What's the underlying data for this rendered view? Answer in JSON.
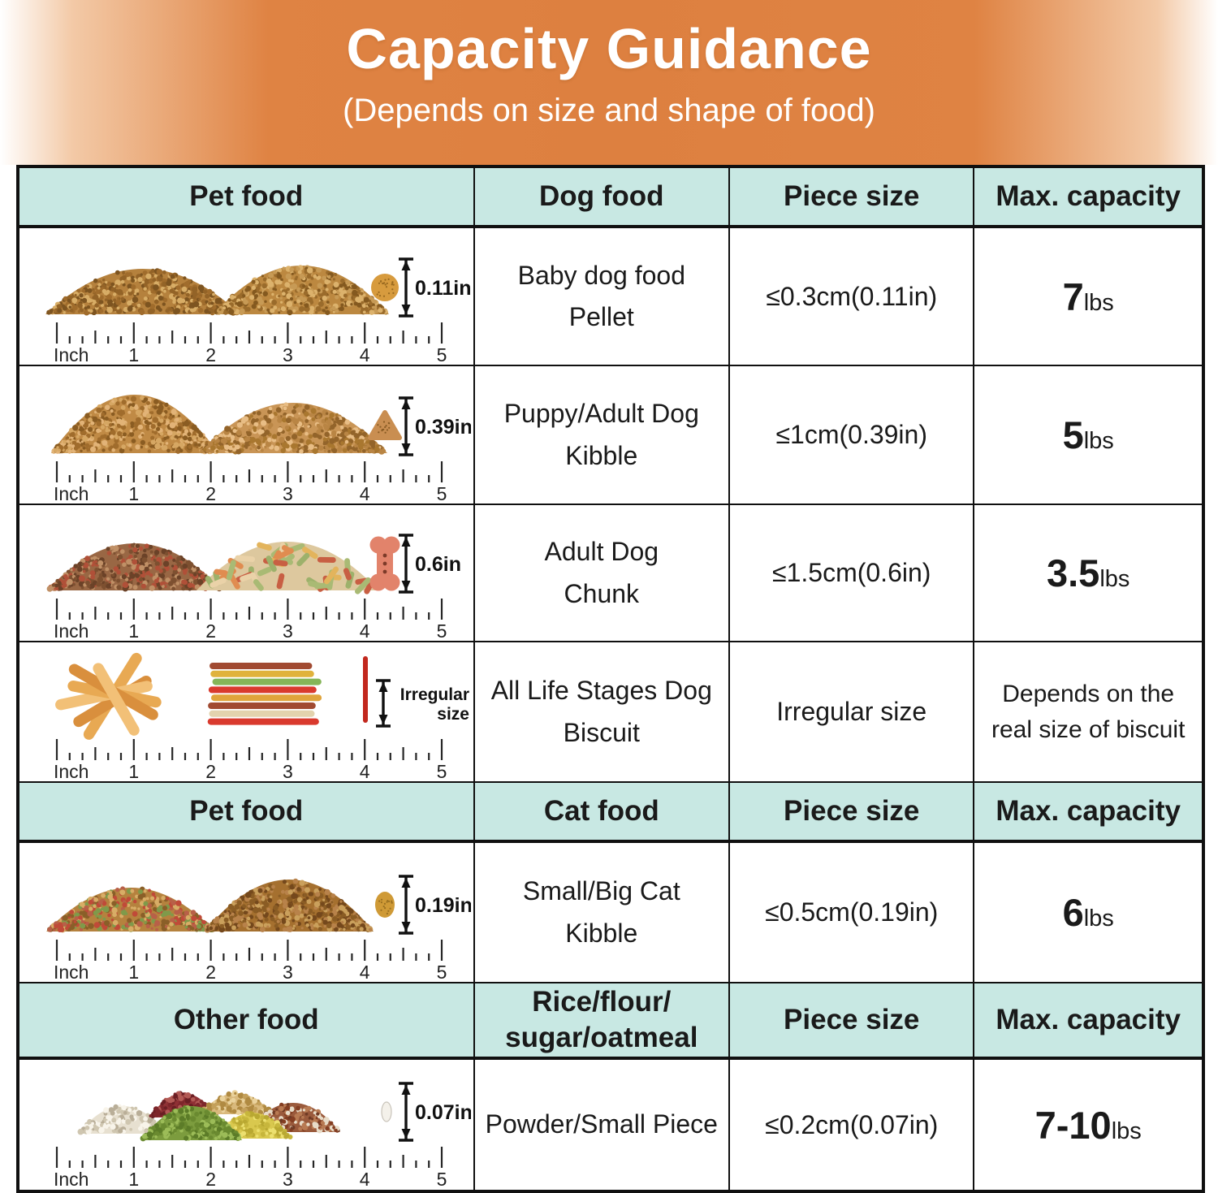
{
  "banner": {
    "title": "Capacity Guidance",
    "subtitle": "(Depends on size and shape of food)"
  },
  "colors": {
    "banner_orange": "#dd8040",
    "header_cell_bg": "#c8e8e3",
    "table_border": "#101010",
    "text": "#1a1a1a",
    "ruler_tick": "#262626"
  },
  "ruler": {
    "unit": "Inch",
    "numbers": [
      "1",
      "2",
      "3",
      "4",
      "5"
    ]
  },
  "sections": [
    {
      "header": [
        "Pet food",
        "Dog food",
        "Piece size",
        "Max. capacity"
      ],
      "rows": [
        {
          "food": "Baby dog food\nPellet",
          "piece_size": "≤0.3cm(0.11in)",
          "capacity": {
            "value": "7",
            "unit": "lbs"
          },
          "art": {
            "type": "pellets",
            "measure": "0.11in",
            "piece_color": "#d79b3e",
            "piles": [
              {
                "base": "#b5813d",
                "dots": [
                  "#7d5420",
                  "#d8ad66",
                  "#936327",
                  "#a06c2c"
                ]
              },
              {
                "base": "#bc8840",
                "dots": [
                  "#84591f",
                  "#dcb26c",
                  "#9a6b2b",
                  "#c79a55"
                ]
              }
            ]
          }
        },
        {
          "food": "Puppy/Adult Dog\nKibble",
          "piece_size": "≤1cm(0.39in)",
          "capacity": {
            "value": "5",
            "unit": "lbs"
          },
          "art": {
            "type": "kibble",
            "measure": "0.39in",
            "piece_color": "#c98e51",
            "piles": [
              {
                "base": "#c08a45",
                "dots": [
                  "#8a5c22",
                  "#e2b377",
                  "#a06c2c",
                  "#d6a763"
                ]
              },
              {
                "base": "#c99556",
                "dots": [
                  "#93642a",
                  "#e8bd85",
                  "#a9772f",
                  "#b98544"
                ]
              }
            ]
          }
        },
        {
          "food": "Adult Dog\nChunk",
          "piece_size": "≤1.5cm(0.6in)",
          "capacity": {
            "value": "3.5",
            "unit": "lbs"
          },
          "art": {
            "type": "chunks",
            "measure": "0.6in",
            "piece_color": "#e2836b",
            "piles": [
              {
                "base": "#996744",
                "dots": [
                  "#6b4228",
                  "#c09066",
                  "#b05038",
                  "#7d5030"
                ]
              }
            ],
            "bones_base": "#ddc89e",
            "bones": [
              "#9db16b",
              "#e08c50",
              "#ead2a8",
              "#c85f43",
              "#a9ba74",
              "#e3b45c"
            ]
          }
        },
        {
          "food": "All Life Stages Dog\nBiscuit",
          "piece_size": "Irregular size",
          "capacity": {
            "text": "Depends on the\nreal size of biscuit"
          },
          "art": {
            "type": "biscuits",
            "measure": "Irregular\nsize",
            "piece_color": "#c2281e",
            "jerky": [
              "#e8a953",
              "#d98f3d",
              "#f2c077"
            ],
            "sticks": [
              "#a14a31",
              "#e0b23c",
              "#85b558",
              "#d93a2e",
              "#e0a43c",
              "#a14a31",
              "#e3d3ae",
              "#d93a2e"
            ]
          }
        }
      ]
    },
    {
      "header": [
        "Pet food",
        "Cat food",
        "Piece size",
        "Max. capacity"
      ],
      "rows": [
        {
          "food": "Small/Big Cat\nKibble",
          "piece_size": "≤0.5cm(0.19in)",
          "capacity": {
            "value": "6",
            "unit": "lbs"
          },
          "art": {
            "type": "cat",
            "measure": "0.19in",
            "piece_color": "#cf9a36",
            "piles": [
              {
                "base": "#b5823e",
                "dots": [
                  "#c04a38",
                  "#7f9a4a",
                  "#8a5f28",
                  "#d8ad66",
                  "#b86048"
                ]
              },
              {
                "base": "#a5702f",
                "dots": [
                  "#74481c",
                  "#caa05c",
                  "#8a5c24",
                  "#b8824a"
                ]
              }
            ]
          }
        }
      ]
    },
    {
      "header": [
        "Other food",
        "Rice/flour/\nsugar/oatmeal",
        "Piece size",
        "Max. capacity"
      ],
      "rows": [
        {
          "food": "Powder/Small Piece",
          "piece_size": "≤0.2cm(0.07in)",
          "capacity": {
            "value": "7-10",
            "unit": "lbs"
          },
          "art": {
            "type": "grains",
            "measure": "0.07in",
            "piece_color": "#f4f1ea",
            "clusters": [
              {
                "base": "#e7e0d0",
                "dots": [
                  "#b9ae98",
                  "#f8f4ea",
                  "#cfc6b0"
                ]
              },
              {
                "base": "#8e3034",
                "dots": [
                  "#6b1f24",
                  "#b25a55",
                  "#7d262b"
                ]
              },
              {
                "base": "#d9b97c",
                "dots": [
                  "#c4a05a",
                  "#ead29c",
                  "#b08a42"
                ]
              },
              {
                "base": "#9a5a3c",
                "dots": [
                  "#6f3a24",
                  "#e8dcc8",
                  "#843e22",
                  "#b87a52"
                ]
              },
              {
                "base": "#d9c84e",
                "dots": [
                  "#b9a832",
                  "#ece06f",
                  "#c7b63c"
                ]
              },
              {
                "base": "#7c9c3e",
                "dots": [
                  "#5c7c28",
                  "#9cbc58",
                  "#6a8a30"
                ]
              }
            ]
          }
        }
      ]
    }
  ]
}
